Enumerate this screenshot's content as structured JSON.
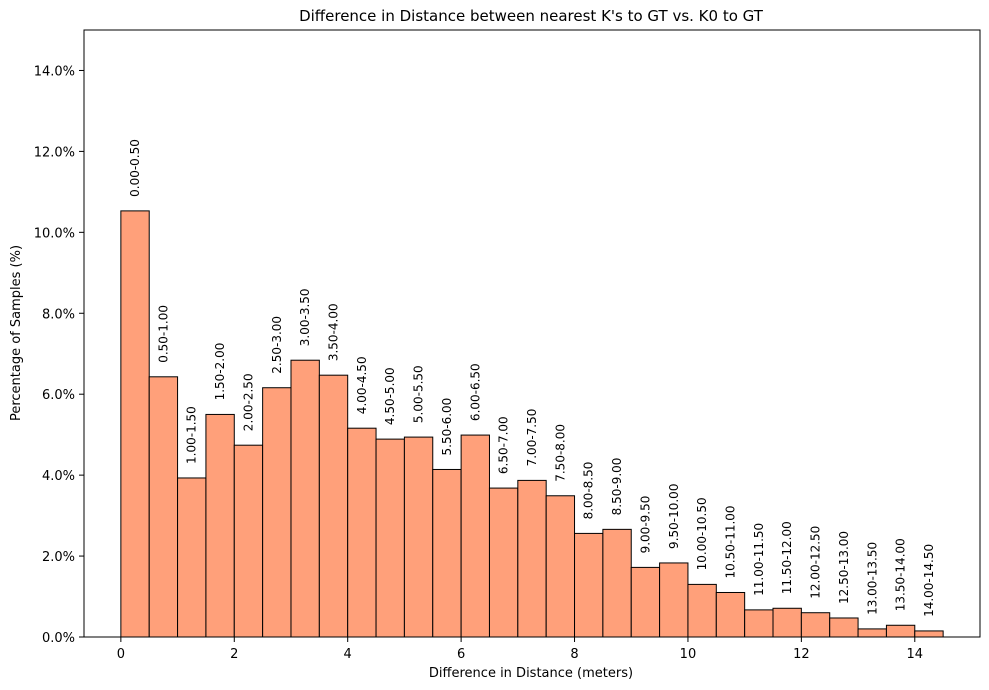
{
  "chart_data": {
    "type": "bar",
    "title": "Difference in Distance between nearest K's to GT vs. K0 to GT",
    "xlabel": "Difference in Distance (meters)",
    "ylabel": "Percentage of Samples (%)",
    "bin_width": 0.5,
    "x_bin_starts": [
      0,
      0.5,
      1,
      1.5,
      2,
      2.5,
      3,
      3.5,
      4,
      4.5,
      5,
      5.5,
      6,
      6.5,
      7,
      7.5,
      8,
      8.5,
      9,
      9.5,
      10,
      10.5,
      11,
      11.5,
      12,
      12.5,
      13,
      13.5,
      14
    ],
    "categories": [
      "0.00-0.50",
      "0.50-1.00",
      "1.00-1.50",
      "1.50-2.00",
      "2.00-2.50",
      "2.50-3.00",
      "3.00-3.50",
      "3.50-4.00",
      "4.00-4.50",
      "4.50-5.00",
      "5.00-5.50",
      "5.50-6.00",
      "6.00-6.50",
      "6.50-7.00",
      "7.00-7.50",
      "7.50-8.00",
      "8.00-8.50",
      "8.50-9.00",
      "9.00-9.50",
      "9.50-10.00",
      "10.00-10.50",
      "10.50-11.00",
      "11.00-11.50",
      "11.50-12.00",
      "12.00-12.50",
      "12.50-13.00",
      "13.00-13.50",
      "13.50-14.00",
      "14.00-14.50"
    ],
    "values": [
      10.53,
      6.43,
      3.93,
      5.5,
      4.74,
      6.16,
      6.84,
      6.47,
      5.16,
      4.89,
      4.94,
      4.14,
      4.99,
      3.68,
      3.87,
      3.49,
      2.56,
      2.66,
      1.72,
      1.83,
      1.3,
      1.1,
      0.67,
      0.71,
      0.6,
      0.47,
      0.2,
      0.29,
      0.15
    ],
    "xlim": [
      -0.65,
      15.15
    ],
    "ylim": [
      0,
      15
    ],
    "x_ticks": [
      0,
      2,
      4,
      6,
      8,
      10,
      12,
      14
    ],
    "x_tick_labels": [
      "0",
      "2",
      "4",
      "6",
      "8",
      "10",
      "12",
      "14"
    ],
    "y_ticks": [
      0,
      2,
      4,
      6,
      8,
      10,
      12,
      14
    ],
    "y_tick_labels": [
      "0.0%",
      "2.0%",
      "4.0%",
      "6.0%",
      "8.0%",
      "10.0%",
      "12.0%",
      "14.0%"
    ],
    "bar_color": "#ffa07a",
    "edge_color": "#000000",
    "grid": false,
    "legend": "none"
  }
}
